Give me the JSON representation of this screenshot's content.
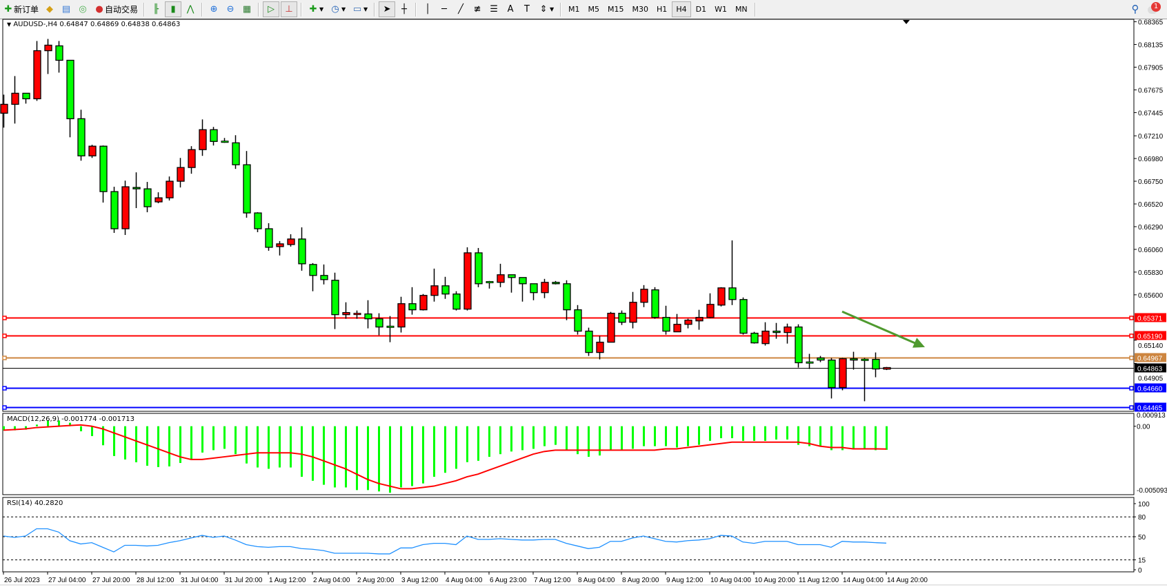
{
  "toolbar": {
    "new_order_label": "新订单",
    "auto_trading_label": "自动交易",
    "icons": [
      "new-order-icon",
      "gold-bar-icon",
      "market-watch-icon",
      "signal-icon",
      "auto-trading-icon",
      "bar-chart-icon",
      "candlestick-icon",
      "line-chart-icon",
      "zoom-in-icon",
      "zoom-out-icon",
      "tile-windows-icon",
      "auto-scroll-icon",
      "chart-shift-icon",
      "indicators-icon",
      "clock-icon",
      "templates-icon",
      "cursor-icon",
      "crosshair-icon",
      "vertical-line-icon",
      "horizontal-line-icon",
      "trendline-icon",
      "fibonacci-icon",
      "channel-icon",
      "text-icon",
      "text-label-icon",
      "arrows-icon"
    ],
    "timeframes": [
      "M1",
      "M5",
      "M15",
      "M30",
      "H1",
      "H4",
      "D1",
      "W1",
      "MN"
    ],
    "active_timeframe": "H4",
    "notification_count": "1"
  },
  "chart": {
    "symbol_header": "AUDUSD-,H4  0.64847 0.64869 0.64838 0.64863",
    "up_color": "#ff0000",
    "down_color": "#00ff00",
    "price_ticks": [
      "0.68365",
      "0.68135",
      "0.67905",
      "0.67675",
      "0.67445",
      "0.67210",
      "0.66980",
      "0.66750",
      "0.66520",
      "0.66290",
      "0.66060",
      "0.65830",
      "0.65600",
      "0.65140",
      "0.64905"
    ],
    "levels": [
      {
        "price": "0.65371",
        "color": "#ff0000"
      },
      {
        "price": "0.65190",
        "color": "#ff0000"
      },
      {
        "price": "0.64967",
        "color": "#cd853f"
      },
      {
        "price": "0.64660",
        "color": "#0000ff"
      },
      {
        "price": "0.64465",
        "color": "#0000ff"
      }
    ],
    "bid": {
      "price": "0.64863",
      "color": "#000000"
    },
    "arrow": {
      "color": "#4f9a2f",
      "from_price": 0.6543,
      "to_price": 0.6507,
      "from_bar": 76,
      "to_bar": 83.5
    },
    "time_labels": [
      "26 Jul 2023",
      "27 Jul 04:00",
      "27 Jul 20:00",
      "28 Jul 12:00",
      "31 Jul 04:00",
      "31 Jul 20:00",
      "1 Aug 12:00",
      "2 Aug 04:00",
      "2 Aug 20:00",
      "3 Aug 12:00",
      "4 Aug 04:00",
      "6 Aug 23:00",
      "7 Aug 12:00",
      "8 Aug 04:00",
      "8 Aug 20:00",
      "9 Aug 12:00",
      "10 Aug 04:00",
      "10 Aug 20:00",
      "11 Aug 12:00",
      "14 Aug 04:00",
      "14 Aug 20:00"
    ]
  },
  "chart_data": [
    {
      "type": "candlestick",
      "title": "AUDUSD-,H4",
      "ylim": [
        0.6442,
        0.6839
      ],
      "ohlc": [
        [
          0.67439,
          0.67627,
          0.67293,
          0.67529
        ],
        [
          0.67529,
          0.67815,
          0.67334,
          0.67641
        ],
        [
          0.67641,
          0.67641,
          0.67536,
          0.67585
        ],
        [
          0.67585,
          0.6817,
          0.67564,
          0.68072
        ],
        [
          0.68072,
          0.68191,
          0.67836,
          0.68128
        ],
        [
          0.68121,
          0.6817,
          0.6785,
          0.67975
        ],
        [
          0.67975,
          0.67975,
          0.67195,
          0.67383
        ],
        [
          0.67383,
          0.67474,
          0.66958,
          0.67007
        ],
        [
          0.67007,
          0.67119,
          0.66986,
          0.67105
        ],
        [
          0.67105,
          0.67112,
          0.66534,
          0.66645
        ],
        [
          0.66645,
          0.66694,
          0.66227,
          0.66269
        ],
        [
          0.66269,
          0.66756,
          0.66206,
          0.66694
        ],
        [
          0.66687,
          0.6684,
          0.66478,
          0.66673
        ],
        [
          0.66673,
          0.66743,
          0.66436,
          0.66492
        ],
        [
          0.66541,
          0.66638,
          0.66527,
          0.66582
        ],
        [
          0.66582,
          0.66798,
          0.66555,
          0.6675
        ],
        [
          0.6675,
          0.66986,
          0.66687,
          0.66889
        ],
        [
          0.66889,
          0.67105,
          0.66826,
          0.6707
        ],
        [
          0.6707,
          0.67376,
          0.67007,
          0.67272
        ],
        [
          0.67272,
          0.673,
          0.67112,
          0.67153
        ],
        [
          0.6715,
          0.67188,
          0.67139,
          0.67146
        ],
        [
          0.67139,
          0.67216,
          0.66875,
          0.66917
        ],
        [
          0.66917,
          0.67056,
          0.66381,
          0.66429
        ],
        [
          0.66429,
          0.66436,
          0.66234,
          0.66269
        ],
        [
          0.66269,
          0.66325,
          0.66046,
          0.66081
        ],
        [
          0.66088,
          0.66144,
          0.65998,
          0.66116
        ],
        [
          0.66109,
          0.66213,
          0.66088,
          0.66165
        ],
        [
          0.66165,
          0.66283,
          0.65844,
          0.65914
        ],
        [
          0.65907,
          0.65921,
          0.65636,
          0.65796
        ],
        [
          0.65796,
          0.65907,
          0.65705,
          0.65754
        ],
        [
          0.65747,
          0.65824,
          0.65253,
          0.65399
        ],
        [
          0.65399,
          0.65524,
          0.65357,
          0.6542
        ],
        [
          0.65404,
          0.65441,
          0.65357,
          0.65406
        ],
        [
          0.65406,
          0.65545,
          0.6526,
          0.65357
        ],
        [
          0.65357,
          0.65413,
          0.6519,
          0.65274
        ],
        [
          0.65276,
          0.65385,
          0.6512,
          0.65274
        ],
        [
          0.65274,
          0.6558,
          0.65218,
          0.6551
        ],
        [
          0.6551,
          0.65677,
          0.65399,
          0.65448
        ],
        [
          0.65448,
          0.65608,
          0.65441,
          0.65594
        ],
        [
          0.65594,
          0.65865,
          0.65531,
          0.65691
        ],
        [
          0.65691,
          0.65782,
          0.65559,
          0.65608
        ],
        [
          0.65608,
          0.65636,
          0.65441,
          0.65455
        ],
        [
          0.65455,
          0.66081,
          0.65441,
          0.66025
        ],
        [
          0.66025,
          0.66074,
          0.65677,
          0.65712
        ],
        [
          0.65728,
          0.6574,
          0.65663,
          0.65726
        ],
        [
          0.65726,
          0.65914,
          0.65677,
          0.65803
        ],
        [
          0.65803,
          0.65803,
          0.65622,
          0.65775
        ],
        [
          0.65775,
          0.65775,
          0.65531,
          0.65712
        ],
        [
          0.65712,
          0.65712,
          0.65545,
          0.65622
        ],
        [
          0.65622,
          0.65761,
          0.65566,
          0.65726
        ],
        [
          0.65726,
          0.6574,
          0.65705,
          0.65712
        ],
        [
          0.65712,
          0.65747,
          0.65343,
          0.65448
        ],
        [
          0.65448,
          0.65496,
          0.65197,
          0.65232
        ],
        [
          0.65232,
          0.65267,
          0.64981,
          0.65016
        ],
        [
          0.65016,
          0.65183,
          0.64946,
          0.6512
        ],
        [
          0.6512,
          0.65427,
          0.6512,
          0.65413
        ],
        [
          0.65413,
          0.65441,
          0.65294,
          0.65322
        ],
        [
          0.65322,
          0.65629,
          0.6526,
          0.65524
        ],
        [
          0.65524,
          0.65698,
          0.65475,
          0.65656
        ],
        [
          0.6565,
          0.65677,
          0.65357,
          0.65371
        ],
        [
          0.65371,
          0.65489,
          0.65197,
          0.65232
        ],
        [
          0.65225,
          0.65406,
          0.65225,
          0.65301
        ],
        [
          0.65301,
          0.65357,
          0.6526,
          0.65343
        ],
        [
          0.65336,
          0.65448,
          0.65246,
          0.65371
        ],
        [
          0.65371,
          0.65615,
          0.65364,
          0.65503
        ],
        [
          0.65496,
          0.65677,
          0.65482,
          0.6567
        ],
        [
          0.6567,
          0.66151,
          0.65496,
          0.65552
        ],
        [
          0.65552,
          0.65573,
          0.65197,
          0.65211
        ],
        [
          0.65211,
          0.65225,
          0.65106,
          0.65113
        ],
        [
          0.65106,
          0.65322,
          0.65086,
          0.65232
        ],
        [
          0.65232,
          0.65315,
          0.65155,
          0.65218
        ],
        [
          0.65218,
          0.65308,
          0.65106,
          0.65274
        ],
        [
          0.65274,
          0.65301,
          0.64863,
          0.64912
        ],
        [
          0.64914,
          0.65002,
          0.64849,
          0.64912
        ],
        [
          0.6496,
          0.64981,
          0.64918,
          0.64939
        ],
        [
          0.64939,
          0.6496,
          0.6455,
          0.64661
        ],
        [
          0.64661,
          0.6496,
          0.64633,
          0.64953
        ],
        [
          0.64953,
          0.65023,
          0.64842,
          0.64939
        ],
        [
          0.64941,
          0.6496,
          0.64522,
          0.64939
        ],
        [
          0.64946,
          0.65016,
          0.64765,
          0.64849
        ],
        [
          0.64847,
          0.64869,
          0.64838,
          0.64863
        ]
      ]
    },
    {
      "type": "bar",
      "title": "MACD(12,26,9) -0.001774 -0.001713",
      "ylim": [
        -0.005093,
        0.000913
      ],
      "tick_labels": [
        "0.000913",
        "0.00",
        "-0.005093"
      ],
      "histogram_color": "#00ff00",
      "signal_color": "#ff0000",
      "histogram": [
        -0.00031,
        -0.00031,
        -0.00026,
        0.00012,
        0.00043,
        0.00043,
        0.00026,
        -0.00038,
        -0.00074,
        -0.00143,
        -0.00224,
        -0.0025,
        -0.00271,
        -0.00297,
        -0.00307,
        -0.00302,
        -0.00276,
        -0.0025,
        -0.00198,
        -0.0018,
        -0.0017,
        -0.0021,
        -0.0028,
        -0.0031,
        -0.0032,
        -0.0031,
        -0.0031,
        -0.0038,
        -0.0041,
        -0.0044,
        -0.0046,
        -0.0046,
        -0.0048,
        -0.0048,
        -0.0049,
        -0.005,
        -0.0046,
        -0.0045,
        -0.0043,
        -0.0038,
        -0.0035,
        -0.0032,
        -0.0027,
        -0.0026,
        -0.0023,
        -0.0021,
        -0.0019,
        -0.0018,
        -0.0017,
        -0.0015,
        -0.0014,
        -0.0018,
        -0.0021,
        -0.0023,
        -0.0022,
        -0.0018,
        -0.0018,
        -0.0017,
        -0.0015,
        -0.0015,
        -0.0015,
        -0.0016,
        -0.0015,
        -0.0014,
        -0.0011,
        -0.0009,
        -0.0009,
        -0.0011,
        -0.0011,
        -0.0011,
        -0.001,
        -0.001,
        -0.0014,
        -0.0015,
        -0.0015,
        -0.0018,
        -0.0018,
        -0.0017,
        -0.0017,
        -0.0018,
        -0.001774
      ],
      "signal": [
        -0.0003,
        -0.00025,
        -0.0002,
        -0.0001,
        -5e-05,
        0,
        5e-05,
        0.0001,
        0,
        -0.0002,
        -0.0005,
        -0.0008,
        -0.0011,
        -0.0014,
        -0.0017,
        -0.002,
        -0.0023,
        -0.0025,
        -0.0025,
        -0.0024,
        -0.0023,
        -0.0022,
        -0.0021,
        -0.002,
        -0.002,
        -0.002,
        -0.002,
        -0.0021,
        -0.0023,
        -0.0026,
        -0.0029,
        -0.0032,
        -0.0036,
        -0.004,
        -0.0043,
        -0.0045,
        -0.0047,
        -0.0047,
        -0.0046,
        -0.0045,
        -0.0043,
        -0.0041,
        -0.0038,
        -0.0036,
        -0.0033,
        -0.003,
        -0.0027,
        -0.0024,
        -0.0021,
        -0.0019,
        -0.0018,
        -0.0018,
        -0.0018,
        -0.0018,
        -0.0018,
        -0.0018,
        -0.0018,
        -0.0018,
        -0.0018,
        -0.0018,
        -0.0017,
        -0.0017,
        -0.0016,
        -0.0015,
        -0.0014,
        -0.0013,
        -0.0012,
        -0.0012,
        -0.0012,
        -0.0012,
        -0.0012,
        -0.0012,
        -0.0012,
        -0.0013,
        -0.0015,
        -0.0016,
        -0.0016,
        -0.0017,
        -0.0017,
        -0.0017,
        -0.001713
      ]
    },
    {
      "type": "line",
      "title": "RSI(14) 40.2820",
      "ylim": [
        0,
        100
      ],
      "tick_labels": [
        "100",
        "80",
        "50",
        "15",
        "0"
      ],
      "levels": [
        80,
        50,
        15
      ],
      "line_color": "#1e90ff",
      "values": [
        51,
        49,
        51,
        62,
        62,
        57,
        44,
        39,
        41,
        34,
        27,
        37,
        37,
        36,
        37,
        41,
        44,
        48,
        52,
        49,
        51,
        45,
        38,
        35,
        34,
        35,
        35,
        32,
        31,
        29,
        25,
        25,
        25,
        25,
        24,
        24,
        33,
        33,
        38,
        40,
        40,
        38,
        51,
        46,
        46,
        47,
        46,
        45,
        45,
        46,
        46,
        40,
        36,
        32,
        34,
        43,
        43,
        48,
        51,
        47,
        43,
        42,
        44,
        45,
        47,
        52,
        51,
        42,
        40,
        43,
        43,
        43,
        38,
        38,
        38,
        34,
        43,
        42,
        42,
        41,
        40.282
      ]
    }
  ]
}
